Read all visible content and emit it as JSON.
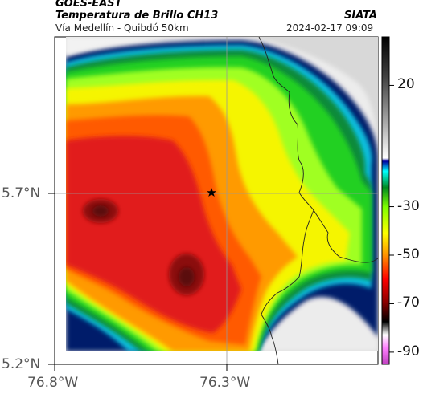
{
  "header": {
    "satellite": "GOES-EAST",
    "product": "Temperatura de Brillo CH13",
    "region": "Vía Medellín - Quibdó 50km",
    "org": "SIATA",
    "datetime": "2024-02-17 09:09"
  },
  "axes": {
    "lat_labels": [
      "5.7°N",
      "5.2°N"
    ],
    "lon_labels": [
      "76.8°W",
      "76.3°W"
    ]
  },
  "colorbar": {
    "tick_labels": [
      "20",
      "-30",
      "-50",
      "-70",
      "-90"
    ],
    "tick_values": [
      20,
      -30,
      -50,
      -70,
      -90
    ],
    "range": [
      -95,
      40
    ]
  },
  "map": {
    "marker": "star-icon",
    "colors": {
      "dark_red": "#5a0a0a",
      "red": "#e11d1d",
      "orange": "#ff7a00",
      "yellow": "#f5f500",
      "lime": "#a0ff20",
      "green": "#20d020",
      "dark_green": "#0a8a3a",
      "cyan": "#10e0f0",
      "blue": "#0a2a9a",
      "navy": "#061a6a",
      "light_gray": "#e6e6e6",
      "gray": "#c8c8c8"
    }
  }
}
